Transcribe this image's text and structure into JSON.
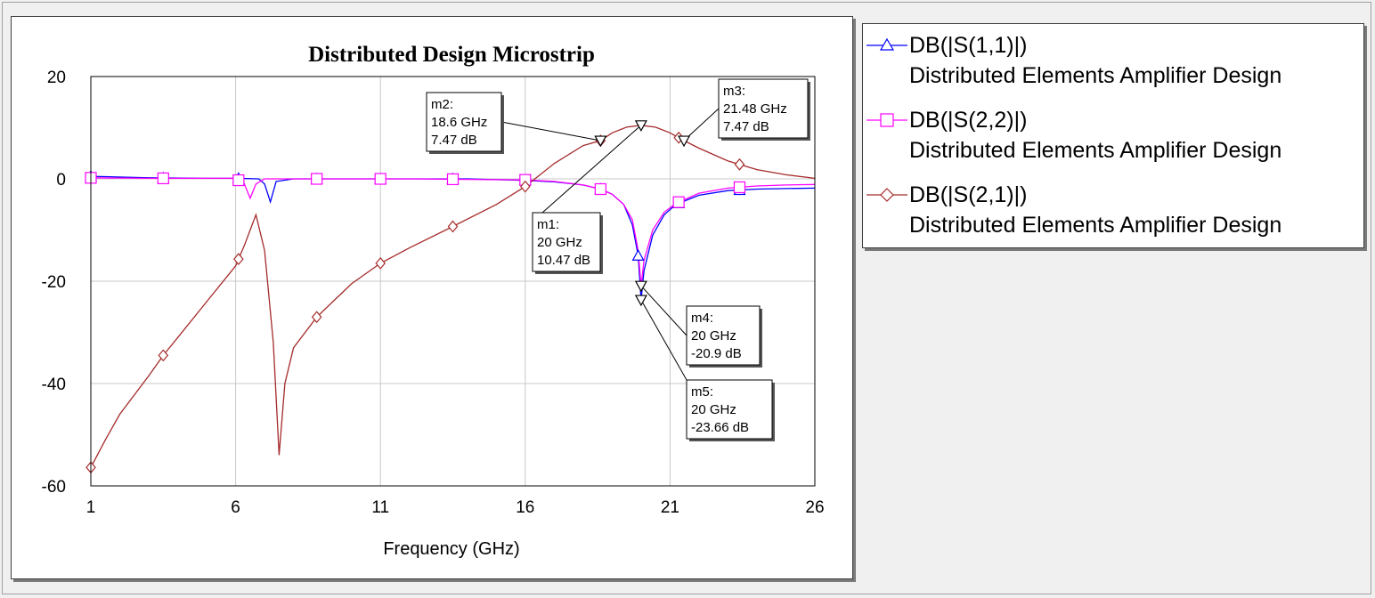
{
  "chart_data": {
    "type": "line",
    "title": "Distributed Design Microstrip",
    "xlabel": "Frequency (GHz)",
    "ylabel": "",
    "xlim": [
      1,
      26
    ],
    "ylim": [
      -60,
      20
    ],
    "x_ticks": [
      "1",
      "6",
      "11",
      "16",
      "21",
      "26"
    ],
    "y_ticks": [
      "20",
      "0",
      "-20",
      "-40",
      "-60"
    ],
    "grid": true,
    "legend_position": "right, outside plot",
    "series": [
      {
        "name": "DB(|S(1,1)|)",
        "source": "Distributed Elements Amplifier Design",
        "color": "#0000ff",
        "marker": "triangle",
        "x": [
          1,
          3,
          5,
          6,
          6.8,
          7.0,
          7.2,
          7.4,
          8,
          10,
          12,
          14,
          16,
          17,
          18,
          18.6,
          19,
          19.4,
          19.7,
          19.9,
          20,
          20.1,
          20.4,
          20.8,
          21.2,
          22,
          23,
          24,
          25,
          26
        ],
        "y": [
          0.5,
          0.2,
          0.1,
          0.1,
          0,
          -1,
          -4.5,
          -0.5,
          0,
          0,
          0,
          0,
          -0.3,
          -0.6,
          -1.2,
          -2,
          -3,
          -5,
          -9,
          -15,
          -23.66,
          -18,
          -11,
          -7,
          -5,
          -3.2,
          -2.3,
          -2,
          -1.9,
          -1.8
        ],
        "marker_x": [
          1,
          3.5,
          6.1,
          8.8,
          11,
          13.5,
          16,
          18.6,
          19.9,
          21.3,
          23.4
        ]
      },
      {
        "name": "DB(|S(2,2)|)",
        "source": "Distributed Elements Amplifier Design",
        "color": "#ff00ff",
        "marker": "square",
        "x": [
          1,
          3,
          5,
          6,
          6.3,
          6.5,
          6.7,
          7.0,
          8,
          10,
          12,
          14,
          16,
          17,
          18,
          18.6,
          19,
          19.4,
          19.7,
          19.9,
          20,
          20.1,
          20.4,
          20.8,
          21.2,
          22,
          23,
          24,
          25,
          26
        ],
        "y": [
          0.2,
          0.1,
          0.1,
          0.1,
          -1,
          -3.8,
          -1,
          0,
          0,
          0,
          0,
          -0.1,
          -0.2,
          -0.5,
          -1.2,
          -2,
          -3,
          -5,
          -8,
          -14,
          -20.9,
          -16,
          -10,
          -6.5,
          -4.8,
          -2.8,
          -1.8,
          -1.4,
          -1.2,
          -1.1
        ],
        "marker_x": [
          1,
          3.5,
          6.1,
          8.8,
          11,
          13.5,
          16,
          18.6,
          21.3,
          23.4
        ]
      },
      {
        "name": "DB(|S(2,1)|)",
        "source": "Distributed Elements Amplifier Design",
        "color": "#a52a2a",
        "marker": "diamond",
        "x": [
          1,
          1.5,
          2,
          3,
          3.5,
          4,
          5,
          6,
          6.3,
          6.5,
          6.7,
          7.0,
          7.3,
          7.5,
          7.7,
          8,
          8.8,
          10,
          11,
          12,
          13.5,
          15,
          16,
          17,
          18,
          18.6,
          19,
          19.5,
          20,
          20.5,
          21,
          21.48,
          22,
          23,
          24,
          25,
          26
        ],
        "y": [
          -56.4,
          -51,
          -46,
          -38.5,
          -34.5,
          -31,
          -24,
          -17,
          -13,
          -10,
          -7,
          -14,
          -32,
          -54,
          -40,
          -33,
          -27,
          -20.5,
          -16.5,
          -13.5,
          -9.3,
          -5,
          -1.5,
          3,
          6.5,
          7.47,
          9,
          10.1,
          10.47,
          10.1,
          9,
          7.47,
          6,
          3.5,
          1.8,
          0.8,
          0.1
        ],
        "marker_x": [
          1,
          3.5,
          6.1,
          8.8,
          11,
          13.5,
          16,
          18.6,
          21.3,
          23.4
        ]
      }
    ],
    "markers": [
      {
        "name": "m1:",
        "freq": "20 GHz",
        "value": "10.47 dB",
        "x": 20,
        "y": 10.47
      },
      {
        "name": "m2:",
        "freq": "18.6 GHz",
        "value": "7.47 dB",
        "x": 18.6,
        "y": 7.47
      },
      {
        "name": "m3:",
        "freq": "21.48 GHz",
        "value": "7.47 dB",
        "x": 21.48,
        "y": 7.47
      },
      {
        "name": "m4:",
        "freq": "20 GHz",
        "value": "-20.9 dB",
        "x": 20,
        "y": -20.9
      },
      {
        "name": "m5:",
        "freq": "20 GHz",
        "value": "-23.66 dB",
        "x": 20,
        "y": -23.66
      }
    ]
  }
}
